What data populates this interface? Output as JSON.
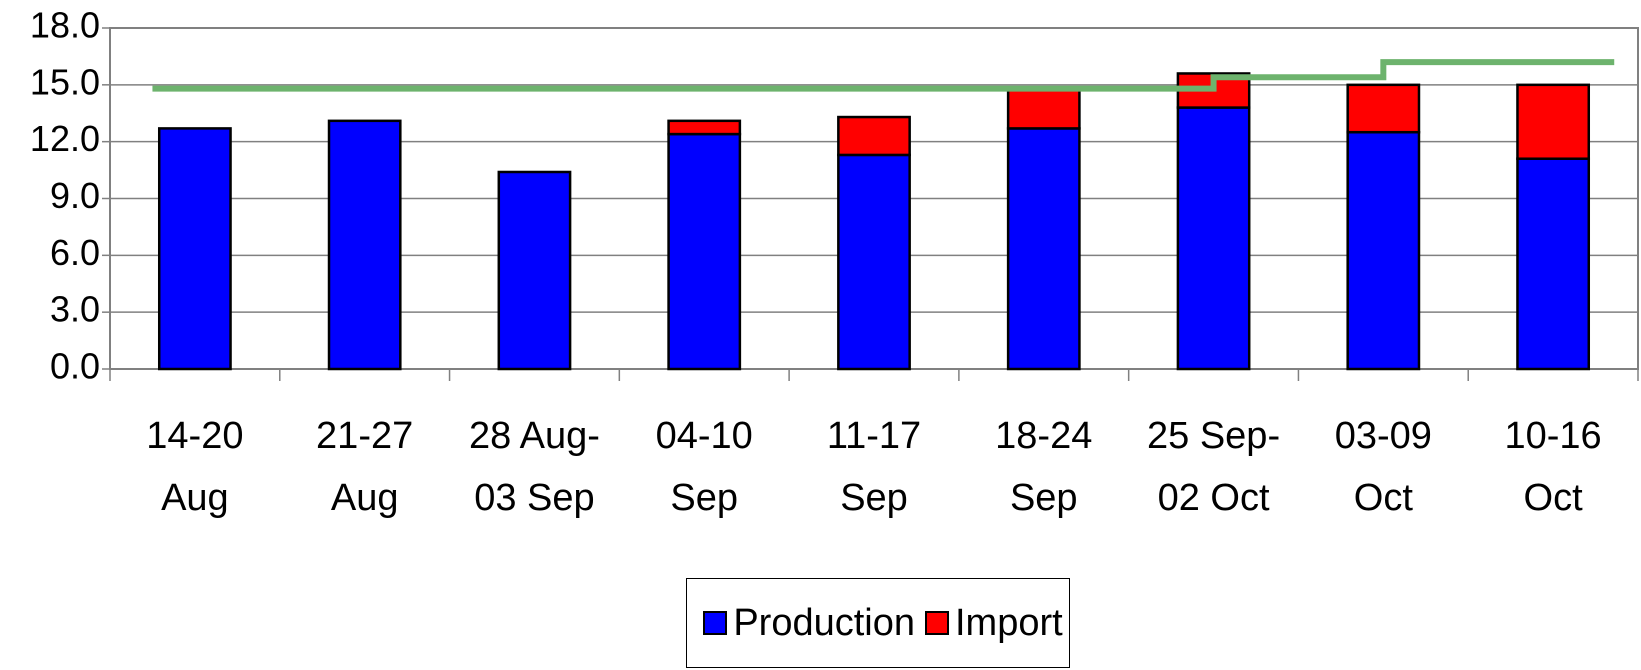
{
  "chart_data": {
    "type": "bar",
    "categories": [
      "14-20\nAug",
      "21-27\nAug",
      "28 Aug-\n03 Sep",
      "04-10\nSep",
      "11-17\nSep",
      "18-24\nSep",
      "25 Sep-\n02 Oct",
      "03-09\nOct",
      "10-16\nOct"
    ],
    "series": [
      {
        "name": "Production",
        "color": "#0000ff",
        "values": [
          12.7,
          13.1,
          10.4,
          12.4,
          11.3,
          12.7,
          13.8,
          12.5,
          11.1
        ]
      },
      {
        "name": "Import",
        "color": "#ff0000",
        "values": [
          0,
          0,
          0,
          0.7,
          2.0,
          2.1,
          1.8,
          2.5,
          3.9
        ]
      }
    ],
    "line": {
      "type": "line",
      "color": "#6db36d",
      "values": [
        14.8,
        14.8,
        14.8,
        14.8,
        14.8,
        14.8,
        15.4,
        16.2,
        16.2
      ]
    },
    "stacked": true,
    "ylim": [
      0,
      18
    ],
    "yticks": [
      {
        "value": 0,
        "label": "0.0"
      },
      {
        "value": 3,
        "label": "3.0"
      },
      {
        "value": 6,
        "label": "6.0"
      },
      {
        "value": 9,
        "label": "9.0"
      },
      {
        "value": 12,
        "label": "12.0"
      },
      {
        "value": 15,
        "label": "15.0"
      },
      {
        "value": 18,
        "label": "18.0"
      }
    ],
    "grid": true,
    "legend": "bottom"
  }
}
